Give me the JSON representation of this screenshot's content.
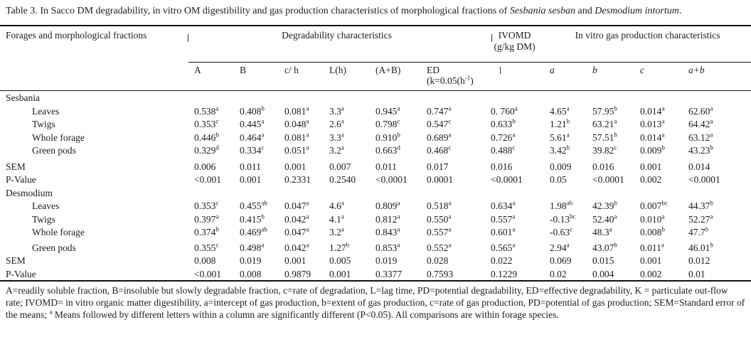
{
  "title": {
    "p1": "Table 3. In Sacco DM degradability, in vitro OM digestibility and gas production characteristics of morphological fractions of ",
    "p2": "Sesbania sesban",
    "p3": " and ",
    "p4": "Desmodium intortum",
    "p5": "."
  },
  "table": {
    "group_headers": {
      "forages": "Forages and morphological  fractions",
      "degradability": "Degradability characteristics",
      "ivomd_line1": "IVOMD",
      "ivomd_line2": "(g/kg DM)",
      "gas": "In vitro gas production characteristics"
    },
    "sub_headers": [
      "A",
      "B",
      "c/ h",
      "L(h)",
      "(A+B)",
      "ED",
      "a",
      "b",
      "c",
      "a+b"
    ],
    "ed_header": {
      "l1": "ED",
      "l2a": "(k=0.05(h",
      "sup": "-1",
      "l2b": ")"
    },
    "rows": [
      {
        "label": "Sesbania",
        "group": true,
        "cells": []
      },
      {
        "label": "Leaves",
        "indent": true,
        "cells": [
          "0.538^a",
          "0.408^b",
          "0.081^a",
          "3.3^a",
          "0.945^a",
          "0.747^a",
          "0. 760^a",
          "4.65^a",
          "57.95^b",
          "0.014^a",
          "62.60^a"
        ]
      },
      {
        "label": "Twigs",
        "indent": true,
        "cells": [
          "0.353^c",
          "0.445^a",
          "0.048^a",
          "2.6^a",
          "0.798^c",
          "0.547^c",
          "0.633^b",
          "1.21^b",
          "63.21^a",
          "0.013^a",
          "64.42^a"
        ]
      },
      {
        "label": "Whole forage",
        "indent": true,
        "cells": [
          "0.446^b",
          "0.464^a",
          "0.081^a",
          "3.3^a",
          "0.910^b",
          "0.689^a",
          "0.726^a",
          "5.61^a",
          "57.51^b",
          "0.014^a",
          "63.12^a"
        ]
      },
      {
        "label": "Green pods",
        "indent": true,
        "cells": [
          "0.329^d",
          "0.334^c",
          "0.051^a",
          "3.2^a",
          "0.663^d",
          "0.468^c",
          "0.488^c",
          "3.42^b",
          "39.82^c",
          "0.009^b",
          "43.23^b"
        ]
      },
      {
        "label": "SEM",
        "gap": true,
        "cells": [
          "0.006",
          "0.011",
          "0.001",
          "0.007",
          "0.011",
          "0.017",
          "0.016",
          "0.009",
          "0.016",
          "0.001",
          "0.014"
        ]
      },
      {
        "label": "P-Value",
        "cells": [
          "<0.001",
          "0.001",
          "0.2331",
          "0.2540",
          "<0.0001",
          "0.0001",
          "<0.0001",
          "0.05",
          "<0.0001",
          "0.002",
          "<0.0001"
        ]
      },
      {
        "label": "Desmodium",
        "group": true,
        "cells": []
      },
      {
        "label": "Leaves",
        "indent": true,
        "cells": [
          "0.353^c",
          "0.455^ab",
          "0.047^a",
          "4.6^a",
          "0.809^a",
          "0.518^a",
          "0.634^a",
          "1.98^ab",
          "42.39^b",
          "0.007^bc",
          "44.37^b"
        ]
      },
      {
        "label": "Twigs",
        "indent": true,
        "cells": [
          "0.397^a",
          "0.415^b",
          "0.042^a",
          "4.1^a",
          "0.812^a",
          "0.550^a",
          "0.557^a",
          "-0.13^bc",
          "52.40^a",
          "0.010^a",
          "52.27^a"
        ]
      },
      {
        "label": "Whole forage",
        "indent": true,
        "cells": [
          "0.374^b",
          "0.469^ab",
          "0.047^a",
          "3.2^a",
          "0.843^a",
          "0.557^a",
          "0.601^a",
          "-0.63^c",
          "48.3^a",
          "0.008^b",
          "47.7^b"
        ]
      },
      {
        "label": "Green pods",
        "indent": true,
        "gap2": true,
        "cells": [
          "0.355^c",
          "0.498^a",
          "0.042^a",
          "1.27^b",
          "0.853^a",
          "0.552^a",
          "0.565^a",
          "2.94^a",
          "43.07^b",
          "0.011^a",
          "46.01^b"
        ]
      },
      {
        "label": "SEM",
        "cells": [
          "0.008",
          "0.019",
          "0.001",
          "0.005",
          "0.019",
          "0.028",
          "0.022",
          "0.069",
          "0.015",
          "0.001",
          "0.012"
        ]
      },
      {
        "label": "P-Value",
        "cells": [
          "<0.001",
          "0.008",
          "0.9879",
          "0.001",
          "0.3377",
          "0.7593",
          "0.1229",
          "0.02",
          "0.004",
          "0.002",
          "0.01"
        ]
      }
    ]
  },
  "footnote": {
    "pre": "A=readily soluble fraction, B=insoluble but slowly degradable fraction, c=rate of degradation, L=lag time, PD=potential degradability, ED=effective degradability,  K = particulate out-flow rate; IVOMD= in vitro organic matter digestibility,  a=intercept of gas production, b=extent of gas  production, c=rate of gas production, PD=potential of gas production; SEM=Standard error of the means;  ",
    "sup": "a",
    "post": " Means followed by different letters within a column are significantly different (P<0.05). All comparisons are within forage species."
  }
}
